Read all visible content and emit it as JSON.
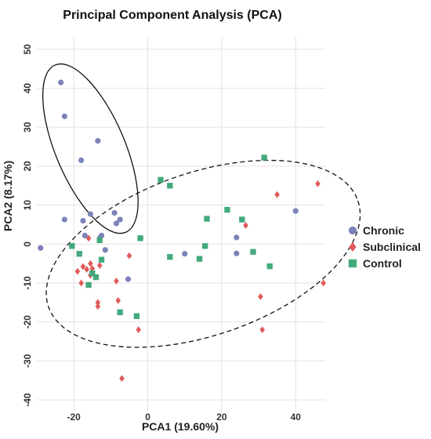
{
  "chart_data": {
    "type": "scatter",
    "title": "Principal Component Analysis (PCA)",
    "xlabel": "PCA1 (19.60%)",
    "ylabel": "PCA2 (8.17%)",
    "xlim": [
      -30,
      48
    ],
    "ylim": [
      -43,
      53
    ],
    "x_ticks": [
      -20,
      0,
      20,
      40
    ],
    "y_ticks": [
      -40,
      -30,
      -20,
      -10,
      0,
      10,
      20,
      30,
      40,
      50
    ],
    "grid": true,
    "legend_position": "right",
    "series": [
      {
        "name": "Chronic",
        "marker": "circle",
        "color": "#7b83b8",
        "points": [
          [
            -23.5,
            41.5
          ],
          [
            -22.5,
            32.8
          ],
          [
            -13.5,
            26.5
          ],
          [
            -18,
            21.5
          ],
          [
            -22.5,
            6.3
          ],
          [
            -15.5,
            7.7
          ],
          [
            -17.5,
            6
          ],
          [
            -9,
            8
          ],
          [
            -7.5,
            6.3
          ],
          [
            -8.5,
            5.3
          ],
          [
            -17,
            2.2
          ],
          [
            -13,
            1.5
          ],
          [
            -12.5,
            2.2
          ],
          [
            -11.5,
            -1.5
          ],
          [
            -29,
            -1
          ],
          [
            -5.3,
            -9
          ],
          [
            10,
            -2.5
          ],
          [
            24,
            1.7
          ],
          [
            24,
            -2.4
          ],
          [
            40,
            8.5
          ]
        ]
      },
      {
        "name": "Subclinical",
        "marker": "diamond",
        "color": "#e15a5a",
        "points": [
          [
            -16,
            1.5
          ],
          [
            -15.5,
            -5
          ],
          [
            -16.5,
            -6.5
          ],
          [
            -17.5,
            -5.8
          ],
          [
            -15,
            -6.3
          ],
          [
            -13,
            -5.5
          ],
          [
            -19,
            -7
          ],
          [
            -18,
            -10
          ],
          [
            -15.5,
            -8
          ],
          [
            -5,
            -3
          ],
          [
            -13.5,
            -15
          ],
          [
            -13.5,
            -16
          ],
          [
            -8,
            -14.5
          ],
          [
            -2.5,
            -22
          ],
          [
            -7,
            -34.5
          ],
          [
            26.5,
            4.8
          ],
          [
            35,
            12.7
          ],
          [
            46,
            15.5
          ],
          [
            47.5,
            -10
          ],
          [
            30.5,
            -13.5
          ],
          [
            31,
            -22
          ],
          [
            -8.5,
            -9.5
          ]
        ]
      },
      {
        "name": "Control",
        "marker": "square",
        "color": "#43a97c",
        "points": [
          [
            31.5,
            22.2
          ],
          [
            3.5,
            16.5
          ],
          [
            6,
            15
          ],
          [
            21.5,
            8.8
          ],
          [
            25.5,
            6.3
          ],
          [
            16,
            6.5
          ],
          [
            -2,
            1.5
          ],
          [
            -20.5,
            -0.5
          ],
          [
            -18.5,
            -2.5
          ],
          [
            -13,
            1
          ],
          [
            6,
            -3.3
          ],
          [
            14,
            -3.8
          ],
          [
            15.5,
            -0.5
          ],
          [
            28.5,
            -2
          ],
          [
            33,
            -5.7
          ],
          [
            -15,
            -7.5
          ],
          [
            -14,
            -8.5
          ],
          [
            -16,
            -10.5
          ],
          [
            -7.5,
            -17.5
          ],
          [
            -3,
            -18.5
          ],
          [
            -12.5,
            -4
          ]
        ]
      }
    ],
    "ellipses": [
      {
        "style": "solid",
        "cx": -15.5,
        "cy": 24.5,
        "rx": 23.5,
        "ry": 9.3,
        "rotation_deg": -66
      },
      {
        "style": "dashed",
        "cx": 15,
        "cy": -2.5,
        "rx": 44,
        "ry": 21,
        "rotation_deg": 18
      }
    ]
  }
}
